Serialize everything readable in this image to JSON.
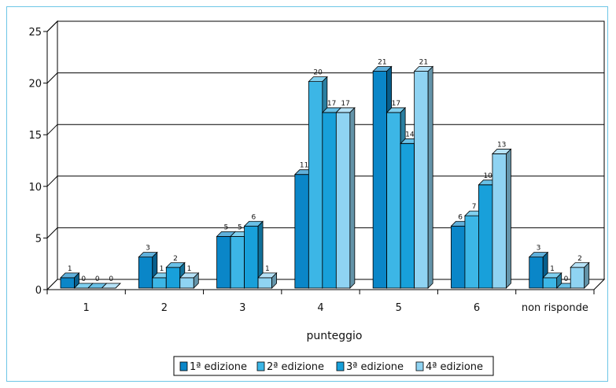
{
  "chart_data": {
    "type": "bar",
    "categories": [
      "1",
      "2",
      "3",
      "4",
      "5",
      "6",
      "non risponde"
    ],
    "series": [
      {
        "name": "1ª edizione",
        "values": [
          1,
          3,
          5,
          11,
          21,
          6,
          3
        ],
        "color": "#0a86c8"
      },
      {
        "name": "2ª edizione",
        "values": [
          0,
          1,
          5,
          20,
          17,
          7,
          1
        ],
        "color": "#3cb6e6"
      },
      {
        "name": "3ª edizione",
        "values": [
          0,
          2,
          6,
          17,
          14,
          10,
          0
        ],
        "color": "#18a0da"
      },
      {
        "name": "4ª edizione",
        "values": [
          0,
          1,
          1,
          17,
          21,
          13,
          2
        ],
        "color": "#8fd3f2"
      }
    ],
    "xlabel": "punteggio",
    "ylabel": "",
    "ylim": [
      0,
      25
    ],
    "yticks": [
      0,
      5,
      10,
      15,
      20,
      25
    ],
    "grid": true,
    "legend_position": "bottom"
  }
}
